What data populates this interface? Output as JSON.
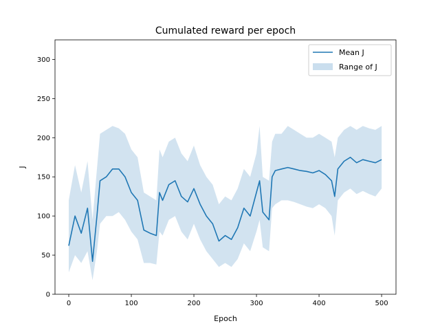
{
  "chart_data": {
    "type": "line",
    "title": "Cumulated reward per epoch",
    "xlabel": "Epoch",
    "ylabel": "J",
    "xlim": [
      -22,
      523
    ],
    "ylim": [
      0,
      325
    ],
    "xticks": [
      0,
      100,
      200,
      300,
      400,
      500
    ],
    "yticks": [
      0,
      50,
      100,
      150,
      200,
      250,
      300
    ],
    "grid": false,
    "legend": {
      "position": "top-right"
    },
    "series": [
      {
        "name": "Mean J",
        "kind": "line",
        "color": "#1f77b4",
        "x": [
          0,
          10,
          20,
          30,
          38,
          45,
          50,
          60,
          70,
          80,
          90,
          100,
          110,
          120,
          130,
          140,
          145,
          150,
          160,
          170,
          180,
          190,
          200,
          210,
          220,
          230,
          240,
          250,
          260,
          270,
          280,
          290,
          300,
          305,
          310,
          320,
          325,
          330,
          340,
          350,
          360,
          370,
          380,
          390,
          400,
          410,
          420,
          425,
          430,
          440,
          450,
          460,
          470,
          480,
          490,
          500
        ],
        "y": [
          62,
          100,
          78,
          110,
          42,
          100,
          145,
          150,
          160,
          160,
          150,
          130,
          120,
          82,
          78,
          75,
          130,
          120,
          140,
          145,
          125,
          118,
          135,
          115,
          100,
          90,
          68,
          75,
          70,
          85,
          110,
          100,
          130,
          145,
          105,
          95,
          150,
          158,
          160,
          162,
          160,
          158,
          157,
          155,
          158,
          153,
          145,
          125,
          160,
          170,
          175,
          168,
          172,
          170,
          168,
          172
        ]
      },
      {
        "name": "Range of J",
        "kind": "band",
        "color": "#a6c8e2",
        "x": [
          0,
          10,
          20,
          30,
          38,
          45,
          50,
          60,
          70,
          80,
          90,
          100,
          110,
          120,
          130,
          140,
          145,
          150,
          160,
          170,
          180,
          190,
          200,
          210,
          220,
          230,
          240,
          250,
          260,
          270,
          280,
          290,
          300,
          305,
          310,
          320,
          325,
          330,
          340,
          350,
          360,
          370,
          380,
          390,
          400,
          410,
          420,
          425,
          430,
          440,
          450,
          460,
          470,
          480,
          490,
          500
        ],
        "lower": [
          28,
          50,
          40,
          55,
          18,
          55,
          90,
          100,
          100,
          105,
          95,
          80,
          70,
          40,
          40,
          38,
          80,
          75,
          95,
          100,
          80,
          70,
          90,
          70,
          55,
          45,
          35,
          40,
          35,
          45,
          65,
          55,
          80,
          95,
          60,
          55,
          110,
          115,
          120,
          120,
          118,
          115,
          112,
          110,
          115,
          110,
          100,
          75,
          120,
          130,
          135,
          128,
          132,
          128,
          125,
          135
        ],
        "upper": [
          120,
          165,
          130,
          170,
          95,
          160,
          205,
          210,
          215,
          212,
          205,
          185,
          175,
          130,
          125,
          120,
          185,
          175,
          195,
          200,
          180,
          170,
          190,
          165,
          150,
          140,
          115,
          125,
          120,
          135,
          160,
          150,
          180,
          215,
          150,
          145,
          195,
          205,
          205,
          215,
          210,
          205,
          200,
          200,
          205,
          200,
          195,
          175,
          200,
          210,
          215,
          210,
          215,
          212,
          210,
          215
        ]
      }
    ]
  }
}
